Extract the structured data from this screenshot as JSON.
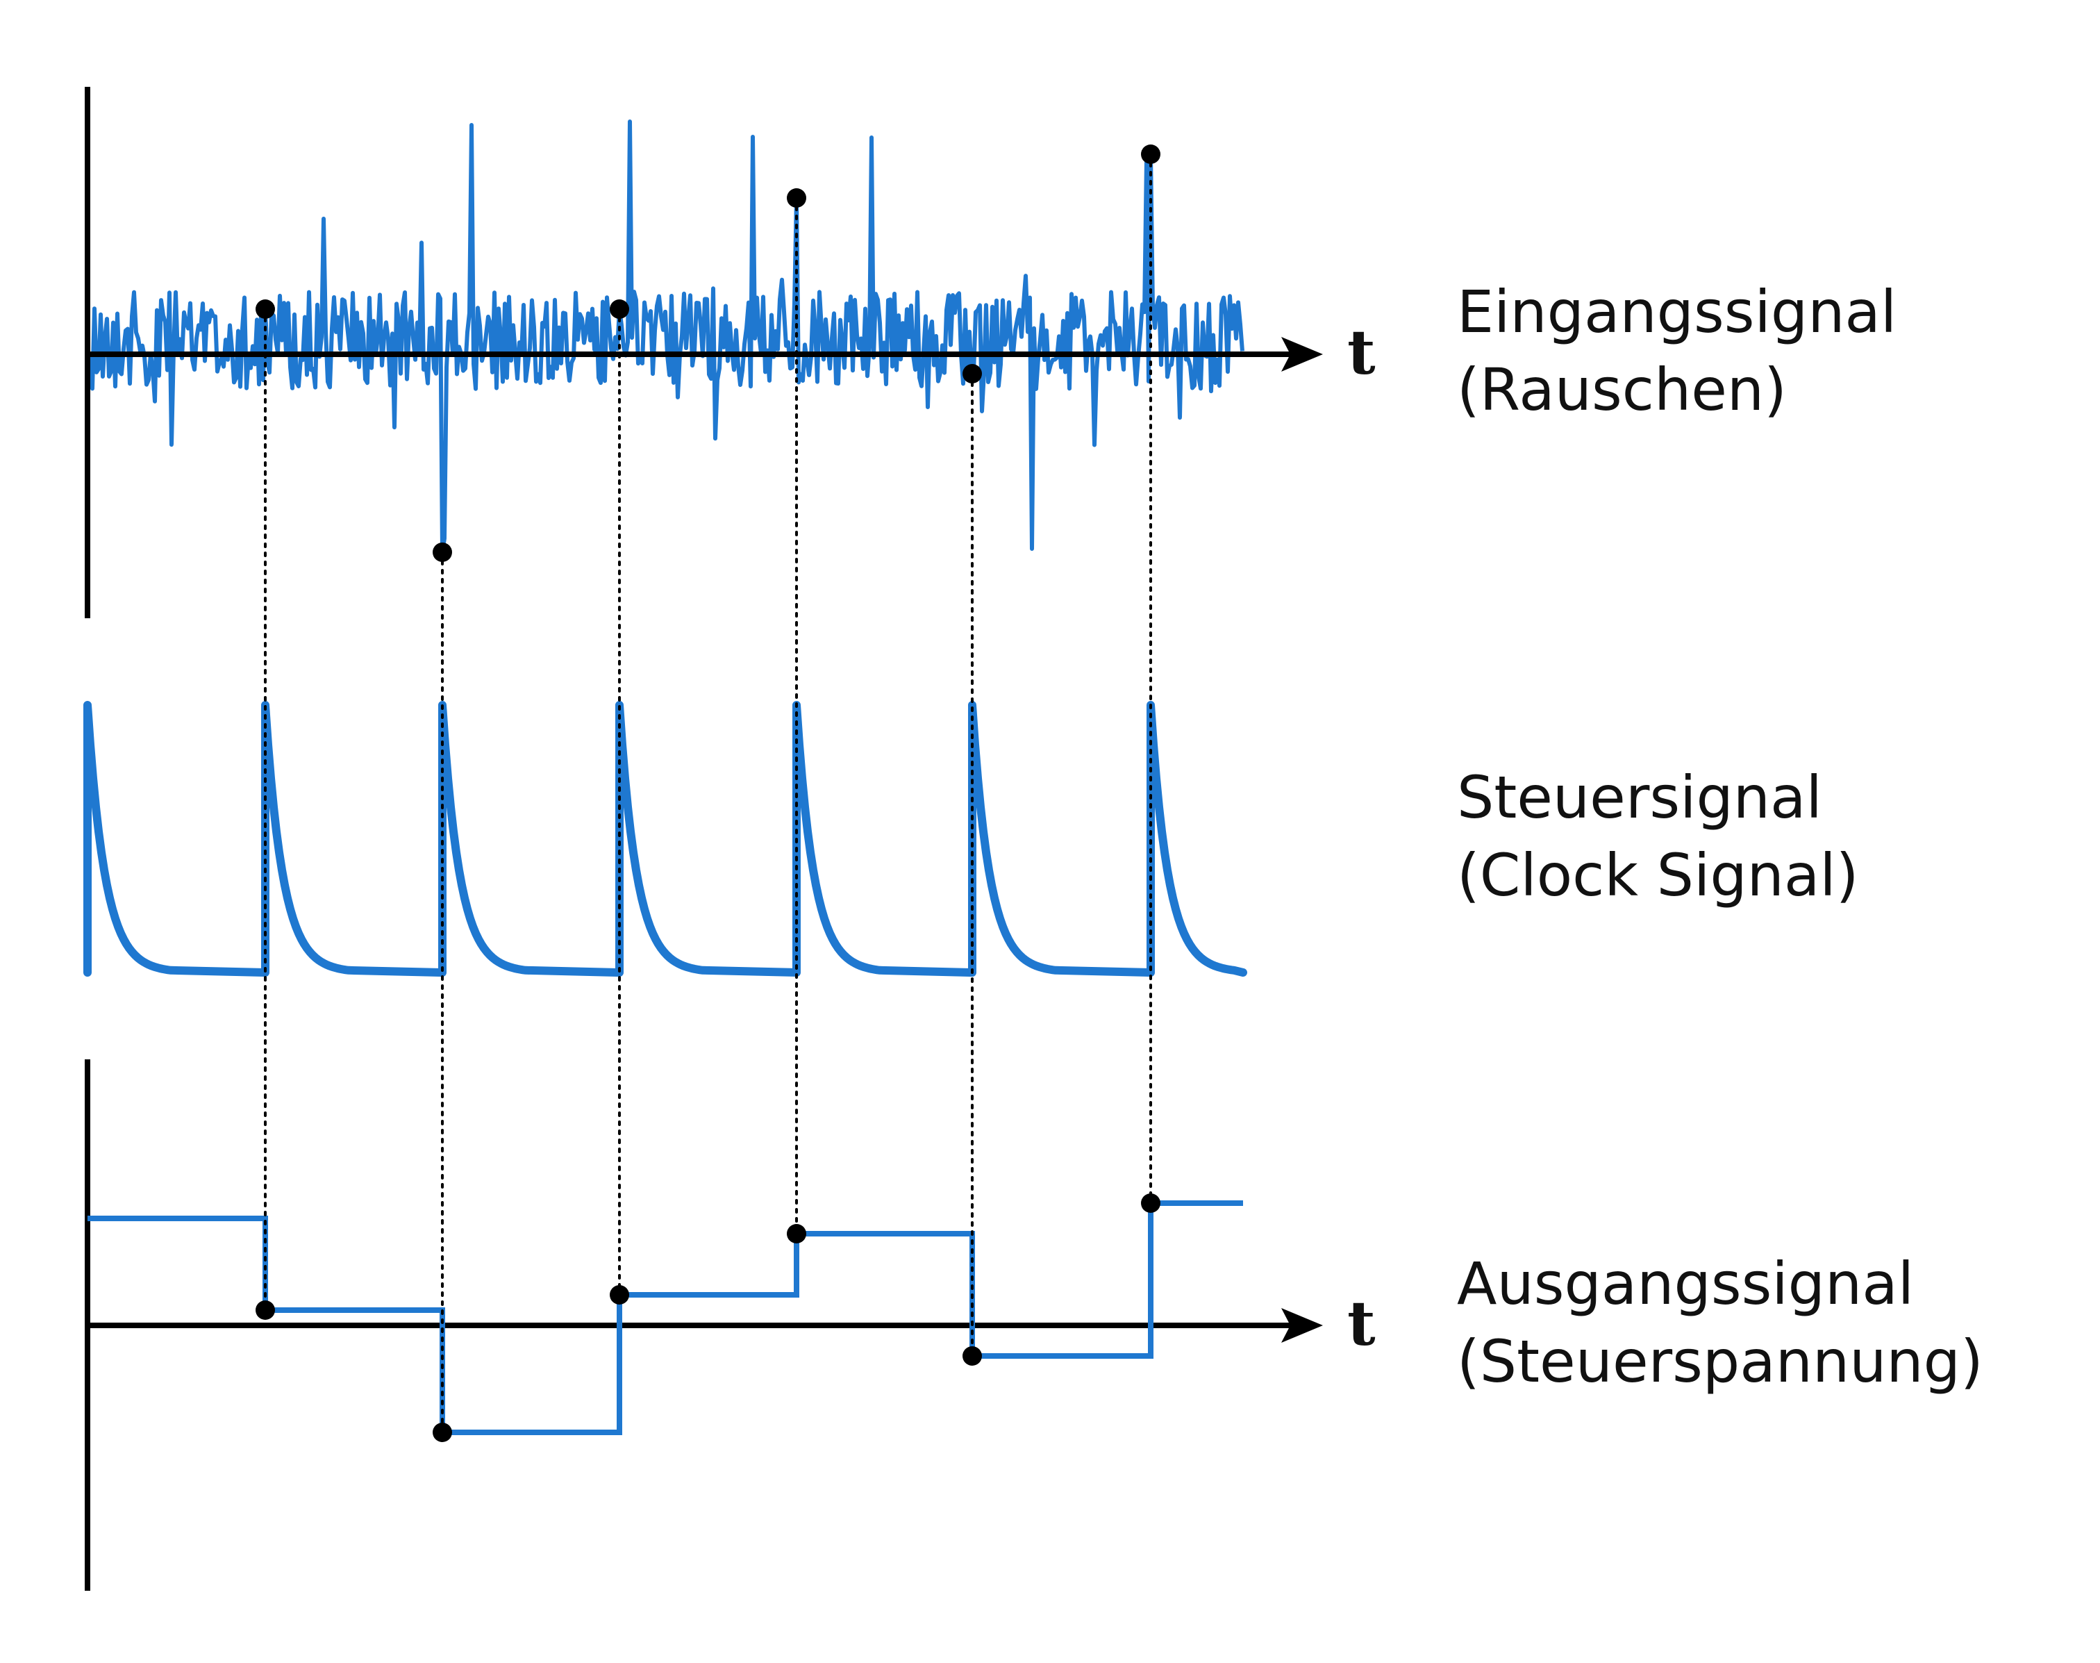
{
  "axis_label": "t",
  "labels": {
    "input_title": "Eingangssignal",
    "input_subtitle": "(Rauschen)",
    "control_title": "Steuersignal",
    "control_subtitle": "(Clock Signal)",
    "output_title": "Ausgangssignal",
    "output_subtitle": "(Steuerspannung)"
  },
  "colors": {
    "signal": "#1f78d0",
    "axis": "#000000",
    "marker": "#000000"
  },
  "sample_count": 6,
  "output_levels": [
    0.7,
    0.1,
    -0.7,
    0.2,
    0.6,
    -0.2,
    0.8
  ]
}
